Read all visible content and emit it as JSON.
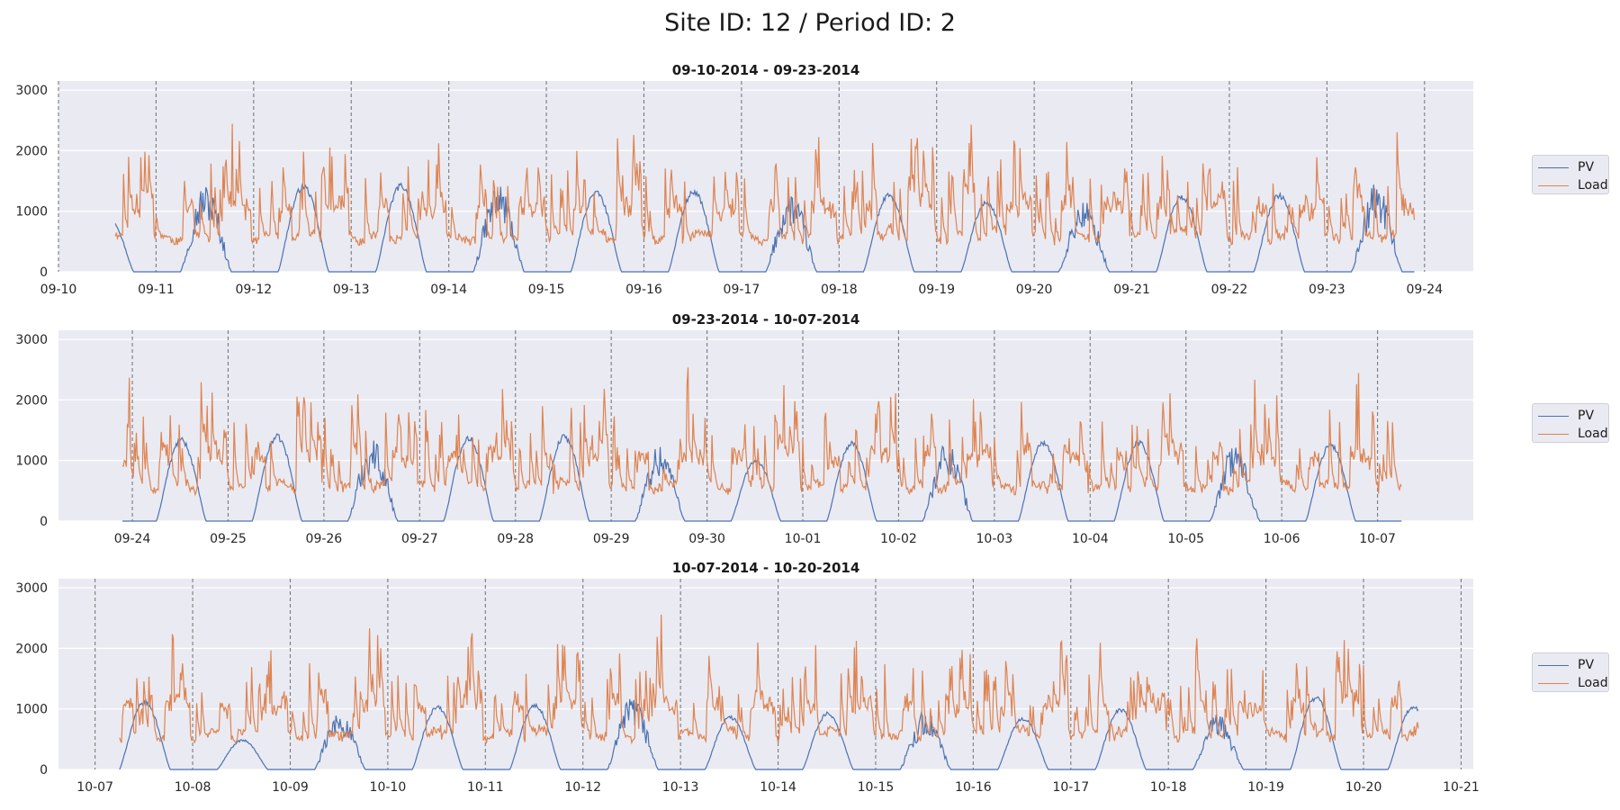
{
  "figure": {
    "suptitle": "Site ID: 12 / Period ID: 2"
  },
  "colors": {
    "pv": "#4c72b0",
    "load": "#dd8452",
    "axes_bg": "#eaeaf2",
    "grid": "#ffffff",
    "day_line": "#7a7a7a"
  },
  "legend": {
    "items": [
      "PV",
      "Load"
    ]
  },
  "chart_data": [
    {
      "type": "line",
      "title": "09-10-2014 - 09-23-2014",
      "ylim": [
        0,
        3150
      ],
      "yticks": [
        0,
        1000,
        2000,
        3000
      ],
      "xlim": [
        "2014-09-10T00:00",
        "2014-09-24T12:00"
      ],
      "data_range": [
        "2014-09-10T14:00",
        "2014-09-23T21:30"
      ],
      "xticks": [
        "09-10",
        "09-11",
        "09-12",
        "09-13",
        "09-14",
        "09-15",
        "09-16",
        "09-17",
        "09-18",
        "09-19",
        "09-20",
        "09-21",
        "09-22",
        "09-23",
        "09-24"
      ],
      "series": [
        {
          "name": "PV",
          "daily_peaks": [
            950,
            1480,
            1460,
            1470,
            1490,
            1350,
            1360,
            1330,
            1300,
            1180,
            1200,
            1280,
            1300,
            1490
          ]
        },
        {
          "name": "Load",
          "base": 800,
          "max": 2750
        }
      ],
      "grid": true,
      "legend": "right"
    },
    {
      "type": "line",
      "title": "09-23-2014 - 10-07-2014",
      "ylim": [
        0,
        3150
      ],
      "yticks": [
        0,
        1000,
        2000,
        3000
      ],
      "xlim": [
        "2014-09-23T05:30",
        "2014-10-08T00:00"
      ],
      "data_range": [
        "2014-09-23T21:30",
        "2014-10-07T06:00"
      ],
      "xticks": [
        "09-24",
        "09-25",
        "09-26",
        "09-27",
        "09-28",
        "09-29",
        "09-30",
        "10-01",
        "10-02",
        "10-03",
        "10-04",
        "10-05",
        "10-06",
        "10-07"
      ],
      "series": [
        {
          "name": "PV",
          "daily_peaks": [
            1290,
            1380,
            1440,
            1400,
            1420,
            1440,
            1300,
            1030,
            1320,
            1350,
            1340,
            1350,
            1300
          ]
        },
        {
          "name": "Load",
          "base": 650,
          "max": 2900
        }
      ],
      "grid": true,
      "legend": "right"
    },
    {
      "type": "line",
      "title": "10-07-2014 - 10-20-2014",
      "ylim": [
        0,
        3150
      ],
      "yticks": [
        0,
        1000,
        2000,
        3000
      ],
      "xlim": [
        "2014-10-06T15:00",
        "2014-10-21T03:00"
      ],
      "data_range": [
        "2014-10-07T06:00",
        "2014-10-20T13:30"
      ],
      "xticks": [
        "10-07",
        "10-08",
        "10-09",
        "10-10",
        "10-11",
        "10-12",
        "10-13",
        "10-14",
        "10-15",
        "10-16",
        "10-17",
        "10-18",
        "10-19",
        "10-20",
        "10-21"
      ],
      "series": [
        {
          "name": "PV",
          "daily_peaks": [
            1150,
            500,
            980,
            1060,
            1090,
            1220,
            890,
            950,
            980,
            870,
            1020,
            930,
            1220,
            1060
          ]
        },
        {
          "name": "Load",
          "base": 650,
          "max": 2900
        }
      ],
      "grid": true,
      "legend": "right"
    }
  ]
}
